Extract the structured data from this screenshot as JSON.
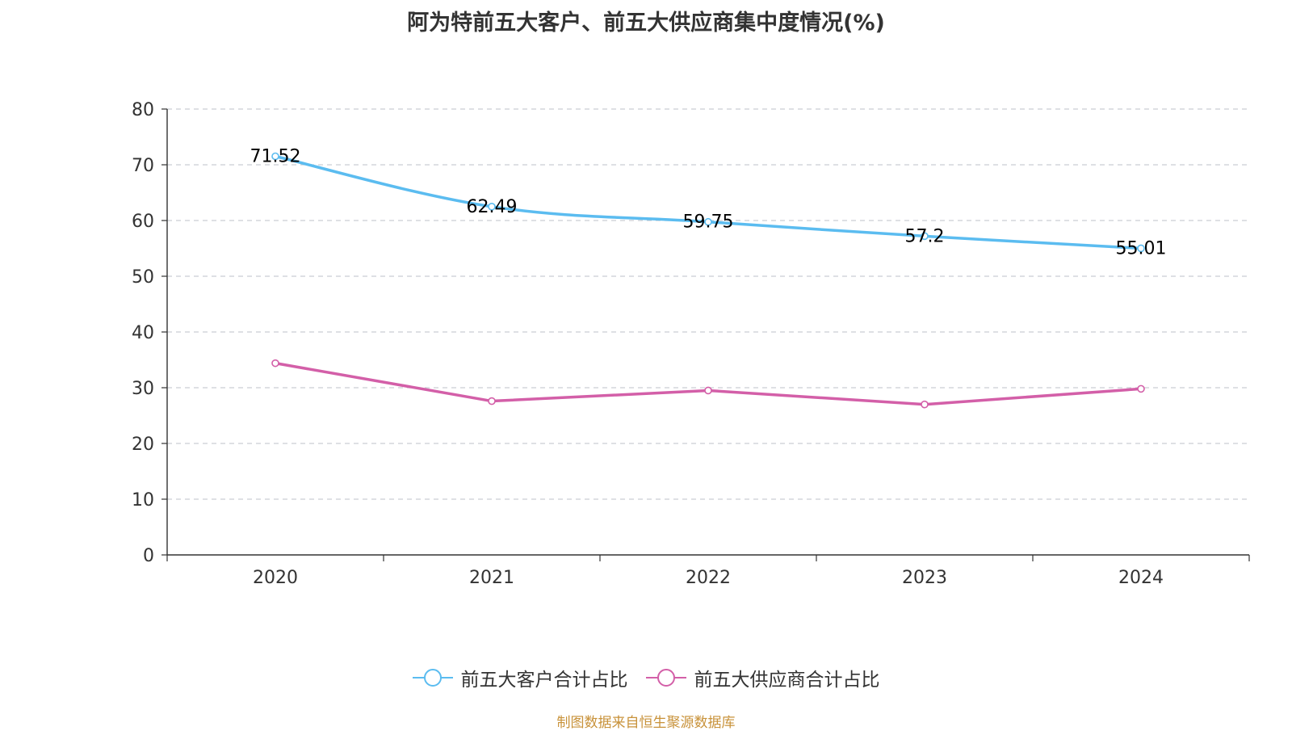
{
  "title": "阿为特前五大客户、前五大供应商集中度情况(%)",
  "source": "制图数据来自恒生聚源数据库",
  "chart_data": {
    "type": "line",
    "title": "阿为特前五大客户、前五大供应商集中度情况(%)",
    "categories": [
      "2020",
      "2021",
      "2022",
      "2023",
      "2024"
    ],
    "ylim": [
      0,
      80
    ],
    "yticks": [
      0,
      10,
      20,
      30,
      40,
      50,
      60,
      70,
      80
    ],
    "grid": true,
    "legend_position": "bottom",
    "series": [
      {
        "name": "前五大客户合计占比",
        "color": "#5bbcf0",
        "values": [
          71.52,
          62.49,
          59.75,
          57.2,
          55.01
        ],
        "labels": [
          "71.52",
          "62.49",
          "59.75",
          "57.2",
          "55.01"
        ]
      },
      {
        "name": "前五大供应商合计占比",
        "color": "#d35fa8",
        "values": [
          34.4,
          27.6,
          29.5,
          27.0,
          29.8
        ]
      }
    ]
  }
}
